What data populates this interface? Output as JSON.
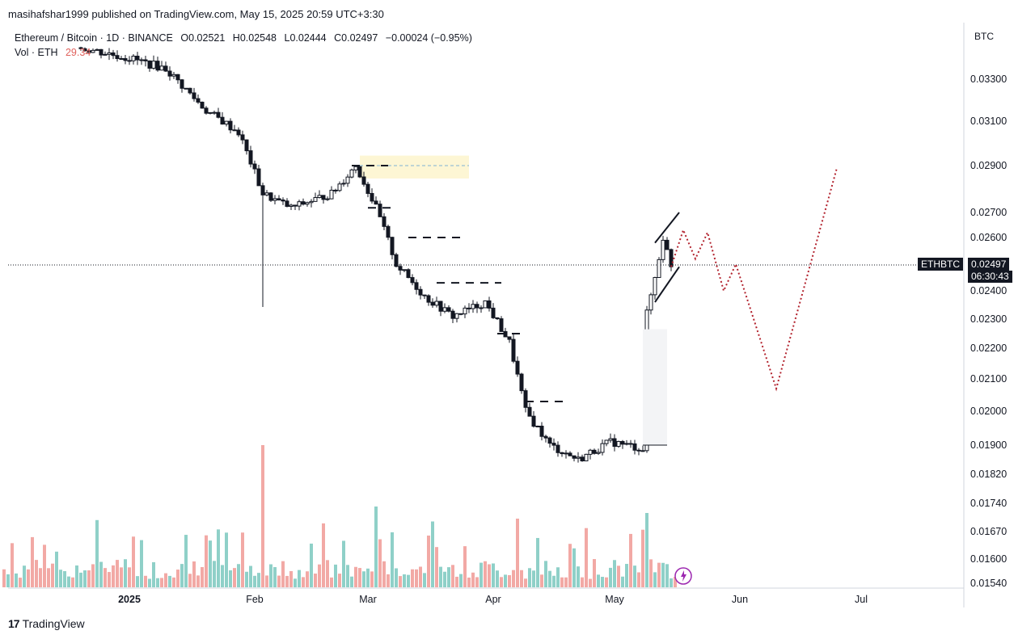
{
  "header": {
    "author": "masihafshar1999",
    "published_text": "published on TradingView.com, May 15, 2025 20:59 UTC+3:30"
  },
  "legend": {
    "symbol": "Ethereum / Bitcoin · 1D · BINANCE",
    "open": "O0.02521",
    "high": "H0.02548",
    "low": "L0.02444",
    "close": "C0.02497",
    "change": "−0.00024 (−0.95%)",
    "volume_label": "Vol · ETH",
    "volume_value": "29.34"
  },
  "axis_unit": "BTC",
  "price_tag": {
    "symbol": "ETHBTC",
    "value": "0.02497",
    "countdown": "06:30:43"
  },
  "footer": {
    "brand": "TradingView"
  },
  "colors": {
    "candle": "#131722",
    "vol_up": "#8fd0c8",
    "vol_down": "#f2a9a5",
    "zone": "#fdf6d4",
    "projection": "#b2222d",
    "channel": "#131722"
  },
  "chart_data": {
    "type": "candlestick",
    "title": "Ethereum / Bitcoin · 1D · BINANCE",
    "yunit": "BTC",
    "y_ticks": [
      "0.03300",
      "0.03100",
      "0.02900",
      "0.02700",
      "0.02600",
      "0.02400",
      "0.02300",
      "0.02200",
      "0.02100",
      "0.02000",
      "0.01900",
      "0.01820",
      "0.01740",
      "0.01670",
      "0.01600",
      "0.01540"
    ],
    "x_ticks": [
      "2025",
      "Feb",
      "Mar",
      "Apr",
      "May",
      "Jun",
      "Jul"
    ],
    "last_price": 0.02497,
    "candles_close_path": [
      {
        "date": "2024-12-20",
        "close": 0.0345
      },
      {
        "date": "2025-01-01",
        "close": 0.034
      },
      {
        "date": "2025-01-10",
        "close": 0.0335
      },
      {
        "date": "2025-01-20",
        "close": 0.0315
      },
      {
        "date": "2025-01-28",
        "close": 0.0305
      },
      {
        "date": "2025-02-03",
        "close": 0.0278
      },
      {
        "date": "2025-02-10",
        "close": 0.0272
      },
      {
        "date": "2025-02-20",
        "close": 0.0278
      },
      {
        "date": "2025-02-26",
        "close": 0.029
      },
      {
        "date": "2025-03-03",
        "close": 0.0272
      },
      {
        "date": "2025-03-08",
        "close": 0.025
      },
      {
        "date": "2025-03-15",
        "close": 0.0238
      },
      {
        "date": "2025-03-22",
        "close": 0.0231
      },
      {
        "date": "2025-03-30",
        "close": 0.0236
      },
      {
        "date": "2025-04-05",
        "close": 0.0222
      },
      {
        "date": "2025-04-09",
        "close": 0.02
      },
      {
        "date": "2025-04-15",
        "close": 0.019
      },
      {
        "date": "2025-04-22",
        "close": 0.0186
      },
      {
        "date": "2025-04-30",
        "close": 0.0191
      },
      {
        "date": "2025-05-08",
        "close": 0.0189
      },
      {
        "date": "2025-05-09",
        "close": 0.0232
      },
      {
        "date": "2025-05-11",
        "close": 0.0245
      },
      {
        "date": "2025-05-13",
        "close": 0.026
      },
      {
        "date": "2025-05-15",
        "close": 0.02497
      }
    ],
    "resistance_levels": [
      0.029,
      0.0272,
      0.026,
      0.0243,
      0.0225,
      0.0203
    ],
    "supply_zone": {
      "low": 0.02845,
      "high": 0.02945,
      "mid": 0.029
    },
    "projection_path": [
      {
        "date": "2025-05-15",
        "price": 0.0249
      },
      {
        "date": "2025-05-18",
        "price": 0.0263
      },
      {
        "date": "2025-05-21",
        "price": 0.0252
      },
      {
        "date": "2025-05-24",
        "price": 0.0262
      },
      {
        "date": "2025-05-28",
        "price": 0.024
      },
      {
        "date": "2025-05-31",
        "price": 0.025
      },
      {
        "date": "2025-06-10",
        "price": 0.0207
      },
      {
        "date": "2025-06-25",
        "price": 0.0289
      }
    ],
    "volume_note": "Vol · ETH 29.34"
  }
}
